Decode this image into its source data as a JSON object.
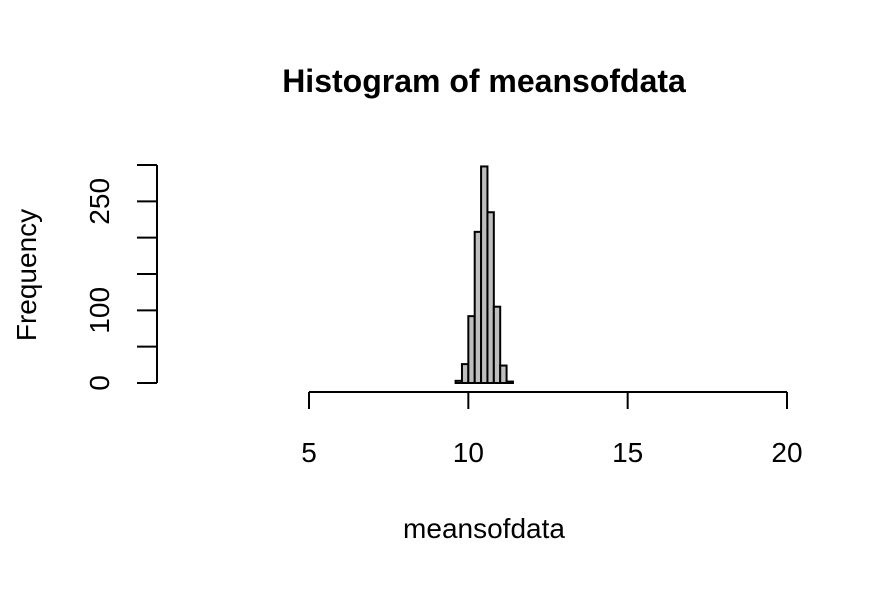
{
  "chart_data": {
    "type": "bar",
    "title": "Histogram of meansofdata",
    "xlabel": "meansofdata",
    "ylabel": "Frequency",
    "xlim": [
      5,
      20
    ],
    "ylim": [
      0,
      300
    ],
    "x_ticks": [
      5,
      10,
      15,
      20
    ],
    "y_ticks": [
      0,
      50,
      100,
      150,
      200,
      250,
      300
    ],
    "y_tick_labels": [
      {
        "value": 0,
        "label": "0"
      },
      {
        "value": 100,
        "label": "100"
      },
      {
        "value": 250,
        "label": "250"
      }
    ],
    "bin_width": 0.2,
    "bins": [
      {
        "x0": 9.6,
        "x1": 9.8,
        "count": 3
      },
      {
        "x0": 9.8,
        "x1": 10.0,
        "count": 26
      },
      {
        "x0": 10.0,
        "x1": 10.2,
        "count": 92
      },
      {
        "x0": 10.2,
        "x1": 10.4,
        "count": 208
      },
      {
        "x0": 10.4,
        "x1": 10.6,
        "count": 298
      },
      {
        "x0": 10.6,
        "x1": 10.8,
        "count": 235
      },
      {
        "x0": 10.8,
        "x1": 11.0,
        "count": 105
      },
      {
        "x0": 11.0,
        "x1": 11.2,
        "count": 24
      },
      {
        "x0": 11.2,
        "x1": 11.4,
        "count": 2
      }
    ],
    "bar_fill": "#bebebe",
    "bar_stroke": "#000000",
    "grid": false,
    "legend": "none"
  }
}
